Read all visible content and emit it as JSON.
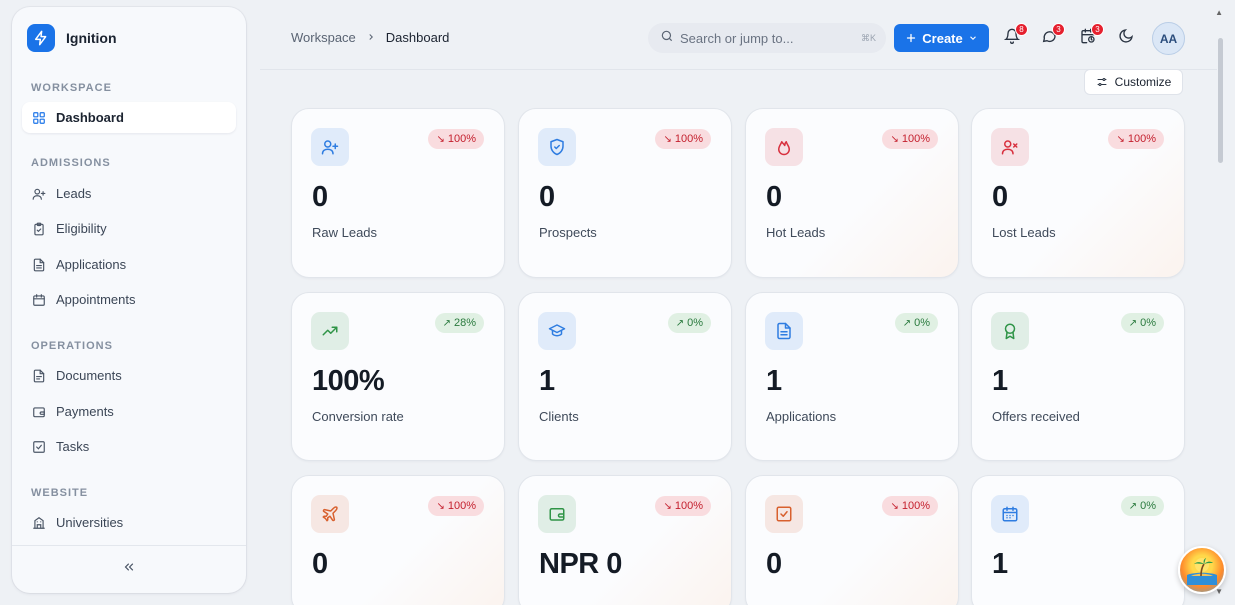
{
  "app": {
    "name": "Ignition"
  },
  "sidebar": {
    "sections": [
      {
        "title": "WORKSPACE",
        "items": [
          {
            "label": "Dashboard",
            "icon": "grid-icon",
            "active": true
          }
        ]
      },
      {
        "title": "ADMISSIONS",
        "items": [
          {
            "label": "Leads",
            "icon": "user-plus-icon"
          },
          {
            "label": "Eligibility",
            "icon": "clipboard-check-icon"
          },
          {
            "label": "Applications",
            "icon": "file-text-icon"
          },
          {
            "label": "Appointments",
            "icon": "calendar-icon"
          }
        ]
      },
      {
        "title": "OPERATIONS",
        "items": [
          {
            "label": "Documents",
            "icon": "document-icon"
          },
          {
            "label": "Payments",
            "icon": "wallet-icon"
          },
          {
            "label": "Tasks",
            "icon": "checkbox-icon"
          }
        ]
      },
      {
        "title": "WEBSITE",
        "items": [
          {
            "label": "Universities",
            "icon": "building-icon"
          }
        ]
      }
    ],
    "collapse_icon": "double-chevron-left-icon"
  },
  "header": {
    "breadcrumb": [
      "Workspace",
      "Dashboard"
    ],
    "search": {
      "placeholder": "Search or jump to...",
      "shortcut": "⌘K"
    },
    "create_label": "Create",
    "badges": {
      "notifications": "8",
      "messages": "3",
      "alerts": "3"
    },
    "avatar": "AA",
    "customize_label": "Customize"
  },
  "cards": [
    {
      "value": "0",
      "label": "Raw Leads",
      "change": "100%",
      "trend": "down",
      "icon": "user-plus-icon",
      "accent": "#2f7de1"
    },
    {
      "value": "0",
      "label": "Prospects",
      "change": "100%",
      "trend": "down",
      "icon": "shield-check-icon",
      "accent": "#2f7de1"
    },
    {
      "value": "0",
      "label": "Hot Leads",
      "change": "100%",
      "trend": "down",
      "icon": "flame-icon",
      "accent": "#d8303e"
    },
    {
      "value": "0",
      "label": "Lost Leads",
      "change": "100%",
      "trend": "down",
      "icon": "user-x-icon",
      "accent": "#d8303e"
    },
    {
      "value": "100%",
      "label": "Conversion rate",
      "change": "28%",
      "trend": "up",
      "icon": "trending-up-icon",
      "accent": "#2f9447"
    },
    {
      "value": "1",
      "label": "Clients",
      "change": "0%",
      "trend": "up",
      "icon": "graduation-cap-icon",
      "accent": "#2f7de1"
    },
    {
      "value": "1",
      "label": "Applications",
      "change": "0%",
      "trend": "up",
      "icon": "file-text-icon",
      "accent": "#2f7de1"
    },
    {
      "value": "1",
      "label": "Offers received",
      "change": "0%",
      "trend": "up",
      "icon": "award-icon",
      "accent": "#2f9447"
    },
    {
      "value": "0",
      "label": "",
      "change": "100%",
      "trend": "down",
      "icon": "plane-icon",
      "accent": "#d8602e"
    },
    {
      "value": "NPR 0",
      "label": "",
      "change": "100%",
      "trend": "down",
      "icon": "wallet-icon",
      "accent": "#2f9447"
    },
    {
      "value": "0",
      "label": "",
      "change": "100%",
      "trend": "down",
      "icon": "checkbox-icon",
      "accent": "#d8602e"
    },
    {
      "value": "1",
      "label": "",
      "change": "0%",
      "trend": "up",
      "icon": "calendar-icon",
      "accent": "#2f7de1"
    }
  ]
}
